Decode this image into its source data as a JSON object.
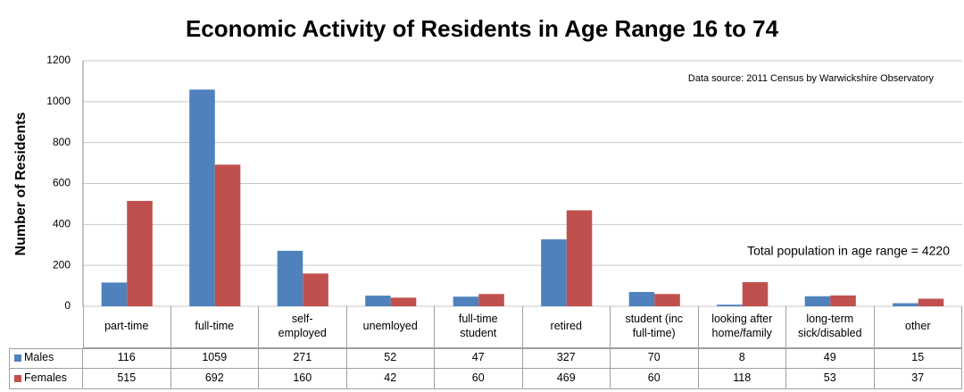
{
  "chart_data": {
    "type": "bar",
    "title": "Economic Activity of Residents in Age Range 16 to 74",
    "y_label": "Number of Residents",
    "annotations": [
      "Data source: 2011 Census by Warwickshire Observatory",
      "Total population in age range = 4220"
    ],
    "categories": [
      "part-time",
      "full-time",
      "self-\nemployed",
      "unemloyed",
      "full-time\nstudent",
      "retired",
      "student (inc\nfull-time)",
      "looking after\nhome/family",
      "long-term\nsick/disabled",
      "other"
    ],
    "series": [
      {
        "name": "Males",
        "color": "#4f81bd",
        "values": [
          116,
          1059,
          271,
          52,
          47,
          327,
          70,
          8,
          49,
          15
        ]
      },
      {
        "name": "Females",
        "color": "#c0504d",
        "values": [
          515,
          692,
          160,
          42,
          60,
          469,
          60,
          118,
          53,
          37
        ]
      }
    ],
    "ylim": [
      0,
      1200
    ],
    "yticks": [
      0,
      200,
      400,
      600,
      800,
      1000,
      1200
    ],
    "grid": true
  }
}
